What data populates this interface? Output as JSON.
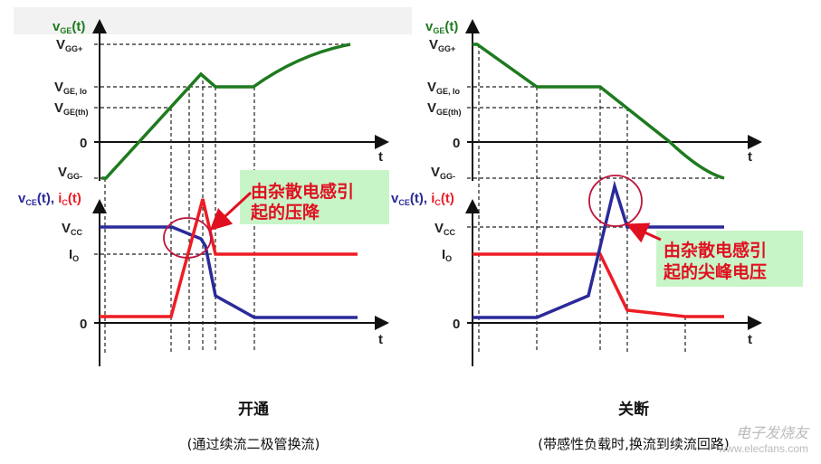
{
  "colors": {
    "vge": "#1e7a1e",
    "vce": "#2a2a9a",
    "ic": "#ee1c24",
    "callout_bg": "#c8f5c8",
    "callout_text": "#e01020",
    "axis": "#111"
  },
  "axis_labels": {
    "vge": {
      "main": "v",
      "sub": "GE",
      "tail": "(t)"
    },
    "vce_ic": {
      "v": "v",
      "vsub": "CE",
      "vtail": "(t), ",
      "i": "i",
      "isub": "C",
      "itail": "(t)"
    },
    "t": "t"
  },
  "levels": {
    "vgg_plus": {
      "main": "V",
      "sub": "GG+"
    },
    "vge_io": {
      "main": "V",
      "sub": "GE, Io"
    },
    "vge_th": {
      "main": "V",
      "sub": "GE(th)"
    },
    "zero": "0",
    "vgg_minus": {
      "main": "V",
      "sub": "GG-"
    },
    "vcc": {
      "main": "V",
      "sub": "CC"
    },
    "io": {
      "main": "I",
      "sub": "O"
    }
  },
  "turn_on": {
    "callout_line1": "由杂散电感引",
    "callout_line2": "起的压降",
    "title": "开通",
    "subtitle": "(通过续流二极管换流)"
  },
  "turn_off": {
    "callout_line1": "由杂散电感引",
    "callout_line2": "起的尖峰电压",
    "title": "关断",
    "subtitle": "(带感性负载时,换流到续流回路)"
  },
  "watermark": {
    "line1": "电子发烧友",
    "line2": "www.elecfans.com"
  }
}
